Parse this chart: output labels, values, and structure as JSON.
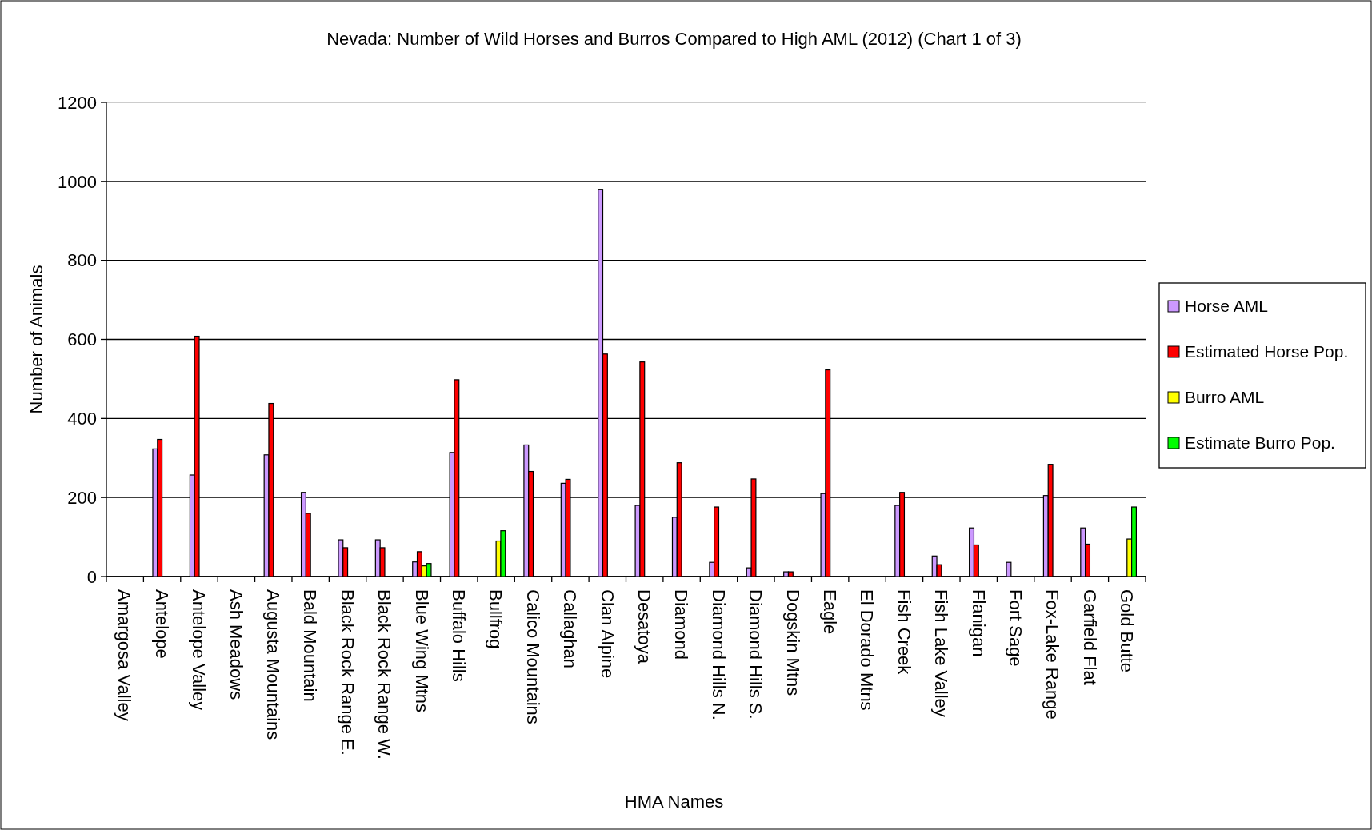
{
  "chart_data": {
    "type": "bar",
    "title": "Nevada: Number of Wild Horses and Burros Compared to High AML (2012) (Chart 1 of 3)",
    "xlabel": "HMA Names",
    "ylabel": "Number of Animals",
    "categories": [
      "Amargosa Valley",
      "Antelope",
      "Antelope Valley",
      "Ash Meadows",
      "Augusta Mountains",
      "Bald Mountain",
      "Black Rock Range E.",
      "Black Rock Range W.",
      "Blue Wing Mtns",
      "Buffalo Hills",
      "Bullfrog",
      "Calico Mountains",
      "Callaghan",
      "Clan Alpine",
      "Desatoya",
      "Diamond",
      "Diamond Hills N.",
      "Diamond Hills S.",
      "Dogskin Mtns",
      "Eagle",
      "El Dorado Mtns",
      "Fish Creek",
      "Fish Lake Valley",
      "Flanigan",
      "Fort Sage",
      "Fox-Lake Range",
      "Garfield Flat",
      "Gold Butte"
    ],
    "series": [
      {
        "name": "Horse AML",
        "color": "#cc99ff",
        "values": [
          null,
          323,
          257,
          null,
          308,
          213,
          93,
          93,
          37,
          314,
          null,
          333,
          236,
          980,
          180,
          150,
          36,
          22,
          12,
          210,
          null,
          180,
          52,
          123,
          36,
          205,
          123,
          null
        ]
      },
      {
        "name": "Estimated Horse Pop.",
        "color": "#ff0000",
        "values": [
          null,
          347,
          608,
          null,
          438,
          160,
          73,
          73,
          63,
          498,
          null,
          266,
          246,
          563,
          543,
          288,
          176,
          247,
          12,
          523,
          null,
          213,
          30,
          80,
          null,
          284,
          82,
          null
        ]
      },
      {
        "name": "Burro AML",
        "color": "#ffff00",
        "values": [
          null,
          null,
          null,
          null,
          null,
          null,
          null,
          null,
          27,
          null,
          90,
          null,
          null,
          null,
          null,
          null,
          null,
          null,
          null,
          null,
          null,
          null,
          null,
          null,
          null,
          null,
          null,
          95
        ]
      },
      {
        "name": "Estimate Burro Pop.",
        "color": "#00ff00",
        "values": [
          null,
          null,
          null,
          null,
          null,
          null,
          null,
          null,
          33,
          null,
          116,
          null,
          null,
          null,
          null,
          null,
          null,
          null,
          null,
          null,
          null,
          null,
          null,
          null,
          null,
          null,
          null,
          176
        ]
      }
    ],
    "ylim": [
      0,
      1200
    ],
    "yticks": [
      0,
      200,
      400,
      600,
      800,
      1000,
      1200
    ],
    "grid": "y",
    "legend": "right"
  }
}
